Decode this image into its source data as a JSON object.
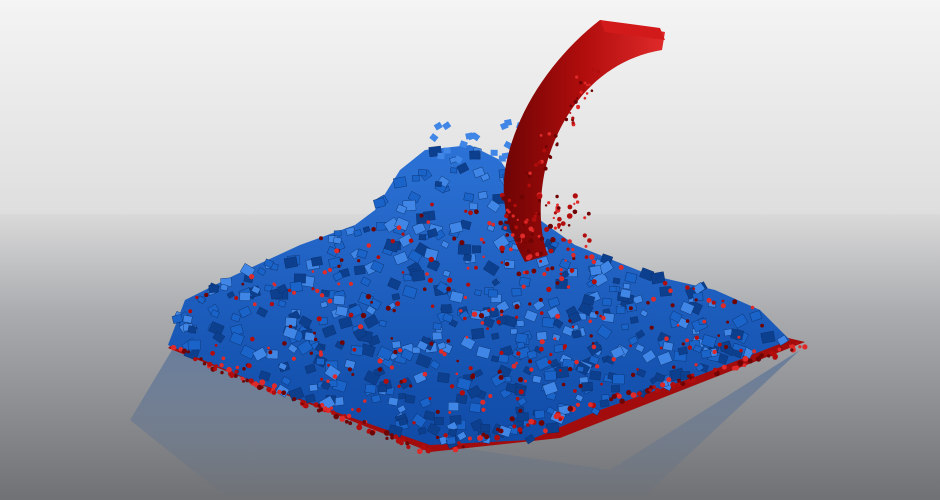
{
  "scene": {
    "description_free": true,
    "colors": {
      "sky_top": "#f4f4f4",
      "sky_horizon": "#dedede",
      "floor_near": "#6f7175",
      "floor_far": "#d9d9d9",
      "cube_blue": "#1a63c9",
      "cube_blue_light": "#3f86e6",
      "cube_blue_dark": "#0d3f8f",
      "fluid_red": "#b20d0d",
      "fluid_red_light": "#e02a2a",
      "fluid_red_dark": "#6f0404"
    },
    "elements": [
      "background-sky",
      "ground-plane",
      "blue-cube-pile",
      "red-fluid-stream",
      "red-particle-layer",
      "reflection"
    ]
  }
}
